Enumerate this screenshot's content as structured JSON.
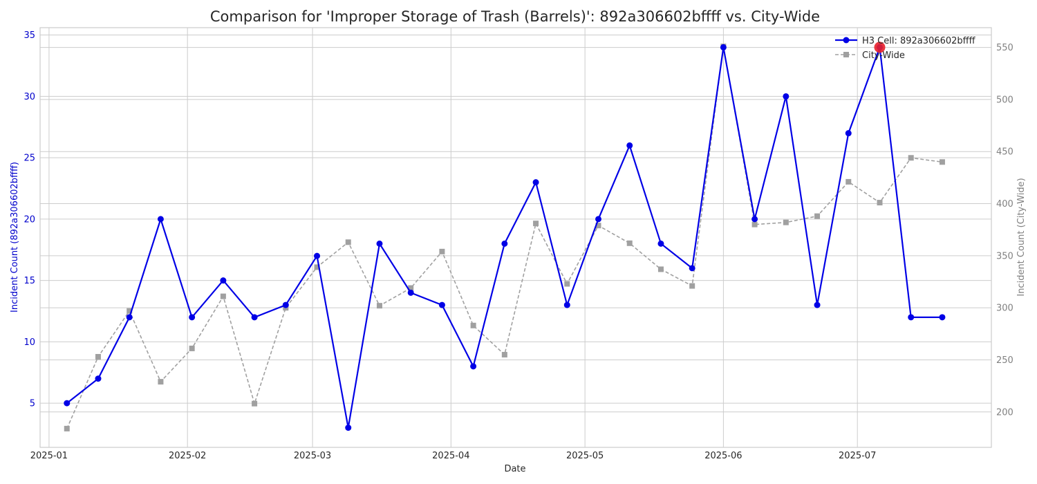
{
  "chart_data": {
    "type": "line",
    "title": "Comparison for 'Improper Storage of Trash (Barrels)': 892a306602bffff vs. City-Wide",
    "xlabel": "Date",
    "ylabel_left": "Incident Count (892a306602bffff)",
    "ylabel_right": "Incident Count (City-Wide)",
    "x": [
      "2025-01-05",
      "2025-01-12",
      "2025-01-19",
      "2025-01-26",
      "2025-02-02",
      "2025-02-09",
      "2025-02-16",
      "2025-02-23",
      "2025-03-02",
      "2025-03-09",
      "2025-03-16",
      "2025-03-23",
      "2025-03-30",
      "2025-04-06",
      "2025-04-13",
      "2025-04-20",
      "2025-04-27",
      "2025-05-04",
      "2025-05-11",
      "2025-05-18",
      "2025-05-25",
      "2025-06-01",
      "2025-06-08",
      "2025-06-15",
      "2025-06-22",
      "2025-06-29",
      "2025-07-06",
      "2025-07-13",
      "2025-07-20"
    ],
    "x_ticks": [
      "2025-01",
      "2025-02",
      "2025-03",
      "2025-04",
      "2025-05",
      "2025-06",
      "2025-07"
    ],
    "x_range": [
      "2024-12-30",
      "2025-07-31"
    ],
    "ylim_left": [
      1.4,
      35.6
    ],
    "yticks_left": [
      5,
      10,
      15,
      20,
      25,
      30,
      35
    ],
    "ylim_right": [
      166,
      569
    ],
    "yticks_right": [
      200,
      250,
      300,
      350,
      400,
      450,
      500,
      550
    ],
    "series": [
      {
        "name": "H3 Cell: 892a306602bffff",
        "axis": "left",
        "color": "#0000e6",
        "style": "solid",
        "marker": "circle",
        "values": [
          5,
          7,
          12,
          20,
          12,
          15,
          12,
          13,
          17,
          3,
          18,
          14,
          13,
          8,
          18,
          23,
          13,
          20,
          26,
          18,
          16,
          34,
          20,
          30,
          13,
          27,
          34,
          12,
          12
        ]
      },
      {
        "name": "City-Wide",
        "axis": "right",
        "color": "#a0a0a0",
        "style": "dashed",
        "marker": "square",
        "values": [
          184,
          253,
          297,
          229,
          261,
          311,
          208,
          300,
          339,
          363,
          302,
          319,
          354,
          283,
          255,
          381,
          323,
          379,
          362,
          337,
          321,
          551,
          380,
          382,
          388,
          421,
          401,
          444,
          440
        ]
      }
    ],
    "highlight": {
      "x": "2025-07-06",
      "value": 34,
      "axis": "left",
      "color": "#e8202a"
    },
    "grid": true,
    "legend_position": "top-right"
  }
}
